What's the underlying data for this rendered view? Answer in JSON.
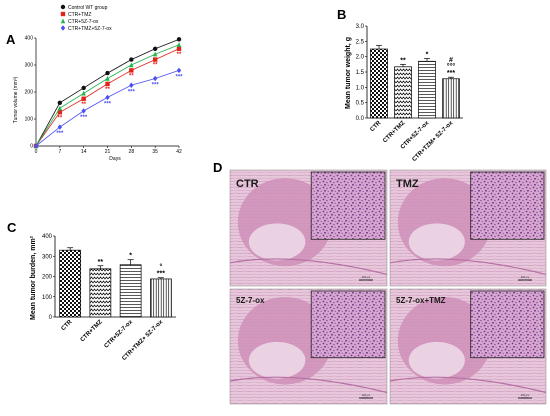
{
  "colors": {
    "control": "#111111",
    "ctr_tmz": "#e2231a",
    "ctr_5z": "#22b24c",
    "ctr_tmz_5z": "#4a4ff0",
    "tissue_pink": "#cf8fb8",
    "tissue_light": "#ecd8e6",
    "nuclei": "#7a4a9a"
  },
  "panels": {
    "A": "A",
    "B": "B",
    "C": "C",
    "D": "D"
  },
  "chart_data": [
    {
      "panel": "A",
      "type": "line",
      "title": "",
      "xlabel": "Days",
      "ylabel": "Tumor volume (mm³)",
      "x": [
        0,
        7,
        14,
        21,
        28,
        35,
        42
      ],
      "xticks": [
        "0",
        "7",
        "14",
        "21",
        "28",
        "35",
        "42"
      ],
      "yticks": [
        "0",
        "100",
        "200",
        "300",
        "400"
      ],
      "ylim": [
        0,
        400
      ],
      "legend_position": "top-left",
      "series": [
        {
          "name": "Control WT group",
          "color": "#111111",
          "marker": "circle",
          "values": [
            0,
            160,
            215,
            270,
            320,
            360,
            395
          ],
          "stars": [
            "",
            "",
            "",
            "",
            "",
            "",
            ""
          ]
        },
        {
          "name": "CTR+TMZ",
          "color": "#e2231a",
          "marker": "square",
          "values": [
            0,
            125,
            175,
            230,
            280,
            320,
            360
          ],
          "stars": [
            "",
            "**",
            "**",
            "**",
            "**",
            "**",
            "**"
          ]
        },
        {
          "name": "CTR+5Z-7-ox",
          "color": "#22b24c",
          "marker": "triangle",
          "values": [
            0,
            140,
            195,
            250,
            300,
            340,
            375
          ],
          "stars": [
            "",
            "",
            "",
            "",
            "",
            "",
            ""
          ]
        },
        {
          "name": "CTR+TMZ+5Z-7-ox",
          "color": "#4a4ff0",
          "marker": "diamond",
          "values": [
            0,
            70,
            130,
            180,
            225,
            250,
            280
          ],
          "stars": [
            "",
            "***",
            "***",
            "***",
            "***",
            "***",
            "***"
          ]
        }
      ]
    },
    {
      "panel": "B",
      "type": "bar",
      "title": "",
      "xlabel": "",
      "ylabel": "Mean tumor weight, g",
      "categories": [
        "CTR",
        "CTR+TMZ",
        "CTR+5Z-7-ox",
        "CTR+TZM+ 5Z-7-ox"
      ],
      "values": [
        2.25,
        1.67,
        1.85,
        1.28
      ],
      "errors": [
        0.12,
        0.08,
        0.09,
        0.05
      ],
      "annotations": [
        [],
        [
          "**"
        ],
        [
          "*"
        ],
        [
          "#",
          "°°°",
          "***"
        ]
      ],
      "yticks": [
        "0.0",
        "0.5",
        "1.0",
        "1.5",
        "2.0",
        "2.5",
        "3.0"
      ],
      "ylim": [
        0,
        3.0
      ],
      "patterns": [
        "checker",
        "zigzag",
        "hlines",
        "vlines"
      ]
    },
    {
      "panel": "C",
      "type": "bar",
      "title": "",
      "xlabel": "",
      "ylabel": "Mean tumor burden, mm²",
      "categories": [
        "CTR",
        "CTR+TMZ",
        "CTR+5Z-7-ox",
        "CTR+TMZ+ 5Z-7-ox"
      ],
      "values": [
        330,
        238,
        258,
        188
      ],
      "errors": [
        12,
        15,
        25,
        6
      ],
      "annotations": [
        [],
        [
          "**"
        ],
        [
          "*"
        ],
        [
          "°",
          "***"
        ]
      ],
      "yticks": [
        "0",
        "100",
        "200",
        "300",
        "400"
      ],
      "ylim": [
        0,
        400
      ],
      "patterns": [
        "checker",
        "zigzag",
        "hlines",
        "vlines"
      ]
    }
  ],
  "histology": {
    "images": [
      {
        "label": "CTR",
        "scale": "200 μm"
      },
      {
        "label": "TMZ",
        "scale": "200 μm"
      },
      {
        "label": "5Z-7-ox",
        "scale": "200 μm"
      },
      {
        "label": "5Z-7-ox+TMZ",
        "scale": "200 μm"
      }
    ]
  }
}
